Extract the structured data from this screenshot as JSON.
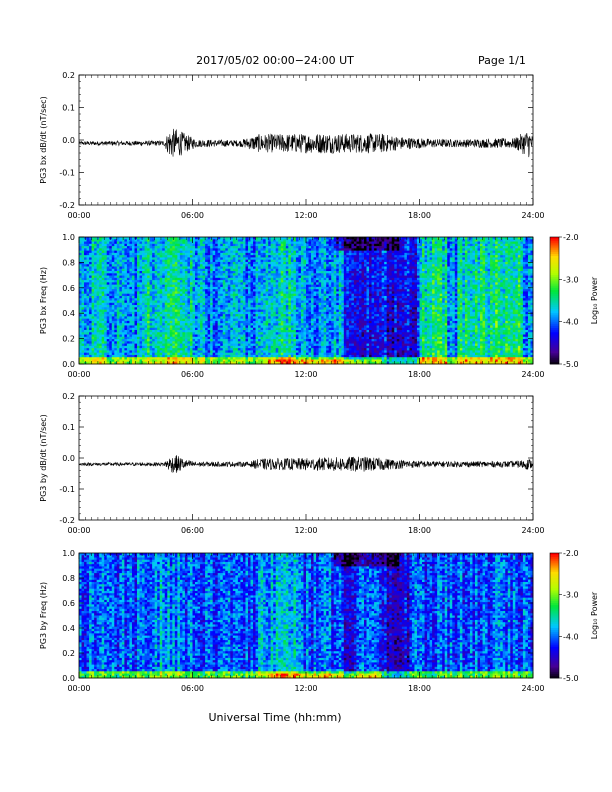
{
  "header": {
    "title": "2017/05/02  00:00−24:00 UT",
    "page": "Page 1/1"
  },
  "footer": {
    "xlabel": "Universal Time (hh:mm)"
  },
  "colorbar": {
    "label": "Log₁₀ Power",
    "ticks": [
      "-2.0",
      "-3.0",
      "-4.0",
      "-5.0"
    ],
    "tick_values": [
      -2.0,
      -3.0,
      -4.0,
      -5.0
    ]
  },
  "chart_data": [
    {
      "type": "line",
      "ylabel": "PG3 bx dB/dt (nT/sec)",
      "xlabel": "",
      "x_tick_labels": [
        "00:00",
        "06:00",
        "12:00",
        "18:00",
        "24:00"
      ],
      "x_ticks_hours": [
        0,
        6,
        12,
        18,
        24
      ],
      "y_tick_labels": [
        "0.2",
        "0.1",
        "0.0",
        "-0.1",
        "-0.2"
      ],
      "y_ticks": [
        0.2,
        0.1,
        0.0,
        -0.1,
        -0.2
      ],
      "xlim_hours": [
        0,
        24
      ],
      "ylim": [
        -0.2,
        0.2
      ],
      "baseline": -0.01,
      "envelope": {
        "hours": [
          0,
          4.5,
          4.8,
          5.2,
          5.6,
          6.2,
          8.5,
          9.5,
          12.0,
          13.0,
          14.0,
          15.0,
          16.0,
          17.0,
          18.5,
          20.0,
          23.0,
          23.8,
          24
        ],
        "amplitude": [
          0.006,
          0.008,
          0.045,
          0.045,
          0.03,
          0.012,
          0.01,
          0.028,
          0.03,
          0.032,
          0.03,
          0.03,
          0.03,
          0.02,
          0.014,
          0.012,
          0.016,
          0.045,
          0.02
        ]
      }
    },
    {
      "type": "heatmap",
      "ylabel": "PG3 bx Freq (Hz)",
      "xlabel": "",
      "x_tick_labels": [
        "00:00",
        "06:00",
        "12:00",
        "18:00",
        "24:00"
      ],
      "x_ticks_hours": [
        0,
        6,
        12,
        18,
        24
      ],
      "y_tick_labels": [
        "1.0",
        "0.8",
        "0.6",
        "0.4",
        "0.2",
        "0.0"
      ],
      "y_ticks": [
        1.0,
        0.8,
        0.6,
        0.4,
        0.2,
        0.0
      ],
      "xlim_hours": [
        0,
        24
      ],
      "ylim": [
        0.0,
        1.0
      ],
      "zlim": [
        -5.0,
        -2.0
      ],
      "color_scale": "rainbow",
      "base_level": -3.85,
      "bright_bands_hours": [
        {
          "start": 0.0,
          "end": 1.5,
          "level": 0.2
        },
        {
          "start": 3.5,
          "end": 6.0,
          "level": 0.35
        },
        {
          "start": 9.5,
          "end": 11.5,
          "level": 0.35
        },
        {
          "start": 18.0,
          "end": 19.5,
          "level": 0.5
        },
        {
          "start": 20.0,
          "end": 23.5,
          "level": 0.5
        }
      ],
      "quiet_bands_hours": [
        {
          "start": 14.0,
          "end": 18.0,
          "level": -0.55
        }
      ]
    },
    {
      "type": "line",
      "ylabel": "PG3 by dB/dt (nT/sec)",
      "xlabel": "",
      "x_tick_labels": [
        "00:00",
        "06:00",
        "12:00",
        "18:00",
        "24:00"
      ],
      "x_ticks_hours": [
        0,
        6,
        12,
        18,
        24
      ],
      "y_tick_labels": [
        "0.2",
        "0.1",
        "0.0",
        "-0.1",
        "-0.2"
      ],
      "y_ticks": [
        0.2,
        0.1,
        0.0,
        -0.1,
        -0.2
      ],
      "xlim_hours": [
        0,
        24
      ],
      "ylim": [
        -0.2,
        0.2
      ],
      "baseline": -0.02,
      "envelope": {
        "hours": [
          0,
          4.5,
          4.8,
          5.2,
          5.6,
          6.2,
          9.0,
          9.5,
          12.0,
          13.0,
          14.0,
          15.0,
          16.0,
          17.0,
          18.5,
          20.0,
          23.0,
          23.8,
          24
        ],
        "amplitude": [
          0.005,
          0.006,
          0.025,
          0.03,
          0.015,
          0.008,
          0.008,
          0.018,
          0.02,
          0.022,
          0.024,
          0.025,
          0.02,
          0.014,
          0.01,
          0.009,
          0.01,
          0.018,
          0.01
        ]
      }
    },
    {
      "type": "heatmap",
      "ylabel": "PG3 by Freq (Hz)",
      "xlabel": "",
      "x_tick_labels": [
        "00:00",
        "06:00",
        "12:00",
        "18:00",
        "24:00"
      ],
      "x_ticks_hours": [
        0,
        6,
        12,
        18,
        24
      ],
      "y_tick_labels": [
        "1.0",
        "0.8",
        "0.6",
        "0.4",
        "0.2",
        "0.0"
      ],
      "y_ticks": [
        1.0,
        0.8,
        0.6,
        0.4,
        0.2,
        0.0
      ],
      "xlim_hours": [
        0,
        24
      ],
      "ylim": [
        0.0,
        1.0
      ],
      "zlim": [
        -5.0,
        -2.0
      ],
      "color_scale": "rainbow",
      "base_level": -4.05,
      "bright_bands_hours": [
        {
          "start": 4.0,
          "end": 5.5,
          "level": 0.25
        },
        {
          "start": 9.5,
          "end": 11.5,
          "level": 0.3
        },
        {
          "start": 14.5,
          "end": 16.0,
          "level": 0.35
        }
      ],
      "quiet_bands_hours": [
        {
          "start": 14.0,
          "end": 17.5,
          "level": -0.4
        }
      ]
    }
  ]
}
